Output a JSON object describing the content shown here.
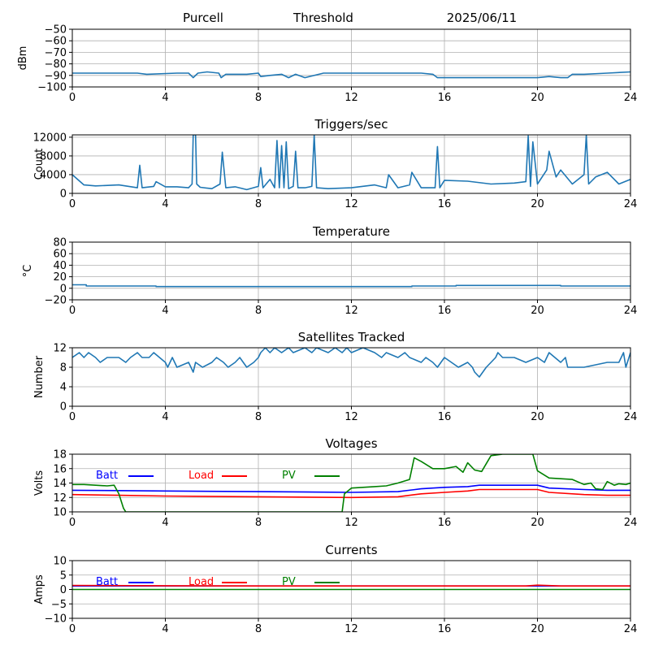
{
  "header": {
    "station": "Purcell",
    "metric": "Threshold",
    "date": "2025/06/11"
  },
  "colors": {
    "series": "#1f77b4",
    "grid": "#b0b0b0",
    "batt": "#0000ff",
    "load": "#ff0000",
    "pv": "#008000"
  },
  "chart_data": [
    {
      "type": "line",
      "title": "",
      "ylabel": "dBm",
      "xlim": [
        0,
        24
      ],
      "ylim": [
        -100,
        -50
      ],
      "x_ticks": [
        "0",
        "4",
        "8",
        "12",
        "16",
        "20",
        "24"
      ],
      "y_ticks": [
        "−50",
        "−60",
        "−70",
        "−80",
        "−90",
        "−100"
      ],
      "grid": true,
      "series": [
        {
          "x": [
            0,
            1.5,
            2.8,
            3.2,
            4.5,
            5,
            5.1,
            5.2,
            5.4,
            5.8,
            6.3,
            6.4,
            6.6,
            7.5,
            8,
            8.1,
            8.5,
            9,
            9.3,
            9.6,
            10,
            10.8,
            11.5,
            12,
            13,
            14,
            15,
            15.5,
            15.7,
            16,
            17,
            18,
            19,
            20,
            20.5,
            21,
            21.3,
            21.5,
            22,
            23,
            24
          ],
          "y": [
            -88,
            -88,
            -88,
            -89,
            -88,
            -88,
            -90,
            -92,
            -88,
            -87,
            -88,
            -92,
            -89,
            -89,
            -88,
            -91,
            -90,
            -89,
            -92,
            -89,
            -92,
            -88,
            -88,
            -88,
            -88,
            -88,
            -88,
            -89,
            -92,
            -92,
            -92,
            -92,
            -92,
            -92,
            -91,
            -92,
            -92,
            -89,
            -89,
            -88,
            -87
          ]
        }
      ]
    },
    {
      "type": "line",
      "title": "Triggers/sec",
      "ylabel": "Count",
      "xlim": [
        0,
        24
      ],
      "ylim": [
        0,
        12500
      ],
      "x_ticks": [
        "0",
        "4",
        "8",
        "12",
        "16",
        "20",
        "24"
      ],
      "y_ticks": [
        "0",
        "4000",
        "8000",
        "12000"
      ],
      "grid": true,
      "series": [
        {
          "x": [
            0,
            0.5,
            1,
            2,
            2.8,
            2.9,
            3,
            3.5,
            3.6,
            4,
            4.5,
            5,
            5.15,
            5.2,
            5.3,
            5.35,
            5.5,
            6,
            6.35,
            6.45,
            6.6,
            7,
            7.5,
            8,
            8.1,
            8.2,
            8.5,
            8.7,
            8.8,
            8.9,
            9,
            9.1,
            9.2,
            9.3,
            9.5,
            9.6,
            9.7,
            10,
            10.3,
            10.4,
            10.5,
            11,
            12,
            13,
            13.5,
            13.6,
            14,
            14.5,
            14.6,
            15,
            15.6,
            15.7,
            15.8,
            16,
            17,
            18,
            19,
            19.5,
            19.6,
            19.7,
            19.8,
            20,
            20.4,
            20.5,
            20.8,
            21,
            21.5,
            22,
            22.1,
            22.2,
            22.5,
            23,
            23.5,
            24
          ],
          "y": [
            4000,
            1800,
            1600,
            1800,
            1200,
            6000,
            1200,
            1500,
            2500,
            1400,
            1400,
            1200,
            2000,
            12500,
            12500,
            2000,
            1300,
            1000,
            2000,
            8800,
            1200,
            1400,
            800,
            1500,
            5500,
            1200,
            3000,
            1200,
            11300,
            1200,
            10200,
            1200,
            11000,
            1000,
            1500,
            9000,
            1200,
            1200,
            1500,
            12500,
            1200,
            1000,
            1200,
            1800,
            1200,
            4000,
            1200,
            1800,
            4500,
            1200,
            1200,
            10000,
            1200,
            2800,
            2600,
            2000,
            2200,
            2500,
            12300,
            1500,
            11000,
            2000,
            5000,
            9000,
            3500,
            5000,
            2000,
            4000,
            12500,
            2000,
            3500,
            4500,
            2000,
            3000
          ]
        }
      ]
    },
    {
      "type": "line",
      "title": "Temperature",
      "ylabel": "°C",
      "xlim": [
        0,
        24
      ],
      "ylim": [
        -20,
        80
      ],
      "x_ticks": [
        "0",
        "4",
        "8",
        "12",
        "16",
        "20",
        "24"
      ],
      "y_ticks": [
        "80",
        "60",
        "40",
        "20",
        "0",
        "−20"
      ],
      "grid": true,
      "series": [
        {
          "x": [
            0,
            0.6,
            0.6,
            3.6,
            3.6,
            14.6,
            14.6,
            16.5,
            16.5,
            21,
            21,
            24
          ],
          "y": [
            6,
            6,
            4,
            4,
            3,
            3,
            4,
            4,
            5,
            5,
            4,
            4
          ]
        }
      ]
    },
    {
      "type": "line",
      "title": "Satellites Tracked",
      "ylabel": "Number",
      "xlim": [
        0,
        24
      ],
      "ylim": [
        0,
        12
      ],
      "x_ticks": [
        "0",
        "4",
        "8",
        "12",
        "16",
        "20",
        "24"
      ],
      "y_ticks": [
        "0",
        "4",
        "8",
        "12"
      ],
      "grid": true,
      "series": [
        {
          "x": [
            0,
            0.3,
            0.5,
            0.7,
            1,
            1.2,
            1.5,
            2,
            2.3,
            2.5,
            2.8,
            3,
            3.3,
            3.5,
            4,
            4.1,
            4.3,
            4.5,
            5,
            5.1,
            5.2,
            5.3,
            5.6,
            6,
            6.2,
            6.5,
            6.7,
            7,
            7.2,
            7.5,
            7.8,
            8,
            8.1,
            8.3,
            8.5,
            8.7,
            9,
            9.3,
            9.5,
            10,
            10.3,
            10.5,
            11,
            11.3,
            11.6,
            11.8,
            12,
            12.5,
            13,
            13.3,
            13.5,
            14,
            14.3,
            14.5,
            15,
            15.2,
            15.5,
            15.7,
            16,
            16.3,
            16.6,
            17,
            17.2,
            17.3,
            17.5,
            17.8,
            18,
            18.2,
            18.3,
            18.5,
            19,
            19.5,
            20,
            20.3,
            20.5,
            21,
            21.2,
            21.3,
            22,
            23,
            23.5,
            23.7,
            23.8,
            24
          ],
          "y": [
            10,
            11,
            10,
            11,
            10,
            9,
            10,
            10,
            9,
            10,
            11,
            10,
            10,
            11,
            9,
            8,
            10,
            8,
            9,
            8,
            7,
            9,
            8,
            9,
            10,
            9,
            8,
            9,
            10,
            8,
            9,
            10,
            11,
            12,
            11,
            12,
            11,
            12,
            11,
            12,
            11,
            12,
            11,
            12,
            11,
            12,
            11,
            12,
            11,
            10,
            11,
            10,
            11,
            10,
            9,
            10,
            9,
            8,
            10,
            9,
            8,
            9,
            8,
            7,
            6,
            8,
            9,
            10,
            11,
            10,
            10,
            9,
            10,
            9,
            11,
            9,
            10,
            8,
            8,
            9,
            9,
            11,
            8,
            11
          ]
        }
      ]
    },
    {
      "type": "line",
      "title": "Voltages",
      "ylabel": "Volts",
      "xlim": [
        0,
        24
      ],
      "ylim": [
        10,
        18
      ],
      "x_ticks": [
        "0",
        "4",
        "8",
        "12",
        "16",
        "20",
        "24"
      ],
      "y_ticks": [
        "10",
        "12",
        "14",
        "16",
        "18"
      ],
      "grid": true,
      "legend": "top-left",
      "series": [
        {
          "name": "Batt",
          "x": [
            0,
            2,
            4,
            8,
            12,
            14,
            15,
            16,
            17,
            17.5,
            20,
            20.5,
            22,
            23,
            24
          ],
          "y": [
            13,
            12.95,
            12.9,
            12.8,
            12.7,
            12.8,
            13.2,
            13.4,
            13.5,
            13.7,
            13.7,
            13.3,
            13.1,
            13,
            13
          ]
        },
        {
          "name": "Load",
          "x": [
            0,
            2,
            4,
            8,
            12,
            14,
            15,
            16,
            17,
            17.5,
            20,
            20.5,
            22,
            23,
            24
          ],
          "y": [
            12.4,
            12.3,
            12.2,
            12.1,
            12,
            12.1,
            12.5,
            12.7,
            12.9,
            13.1,
            13.1,
            12.7,
            12.4,
            12.3,
            12.3
          ]
        },
        {
          "name": "PV",
          "x": [
            0,
            0.5,
            1,
            1.5,
            1.8,
            2,
            2.2,
            2.3,
            11.6,
            11.7,
            12,
            12.5,
            13,
            13.5,
            14,
            14.5,
            14.7,
            15,
            15.5,
            16,
            16.5,
            16.8,
            17,
            17.3,
            17.6,
            18,
            18.5,
            19,
            19.5,
            19.8,
            20,
            20.5,
            21,
            21.5,
            22,
            22.3,
            22.5,
            22.8,
            23,
            23.3,
            23.5,
            23.8,
            24
          ],
          "y": [
            13.8,
            13.8,
            13.7,
            13.6,
            13.7,
            12.5,
            10.5,
            10,
            10,
            12.5,
            13.3,
            13.4,
            13.5,
            13.6,
            14,
            14.5,
            17.5,
            17,
            16,
            16,
            16.3,
            15.5,
            16.8,
            15.8,
            15.6,
            17.8,
            18,
            18,
            18,
            18,
            15.7,
            14.7,
            14.6,
            14.5,
            13.8,
            14,
            13.2,
            13.1,
            14.2,
            13.7,
            13.9,
            13.8,
            14
          ]
        }
      ]
    },
    {
      "type": "line",
      "title": "Currents",
      "ylabel": "Amps",
      "xlim": [
        0,
        24
      ],
      "ylim": [
        -10,
        10
      ],
      "x_ticks": [
        "0",
        "4",
        "8",
        "12",
        "16",
        "20",
        "24"
      ],
      "y_ticks": [
        "10",
        "5",
        "0",
        "−5",
        "−10"
      ],
      "grid": true,
      "legend": "top-left",
      "series": [
        {
          "name": "Batt",
          "x": [
            0,
            24
          ],
          "y": [
            1.2,
            1.2
          ]
        },
        {
          "name": "Load",
          "x": [
            0,
            4,
            8,
            12,
            16,
            19.5,
            20,
            21,
            24
          ],
          "y": [
            1.4,
            1.3,
            1.2,
            1.2,
            1.2,
            1.2,
            1.5,
            1.2,
            1.2
          ]
        },
        {
          "name": "PV",
          "x": [
            0,
            24
          ],
          "y": [
            0,
            0
          ]
        }
      ]
    }
  ]
}
